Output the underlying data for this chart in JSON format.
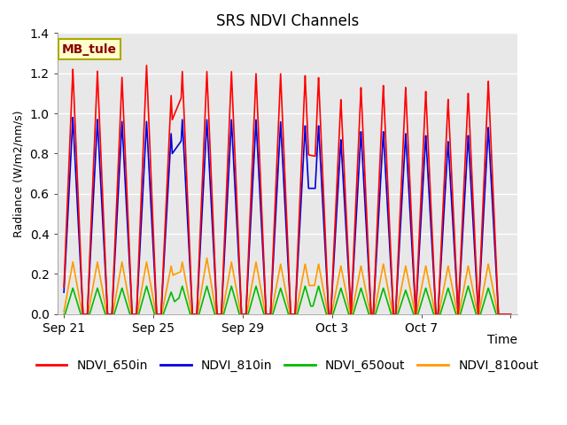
{
  "title": "SRS NDVI Channels",
  "xlabel": "Time",
  "ylabel": "Radiance (W/m2/nm/s)",
  "ylim": [
    0.0,
    1.4
  ],
  "annotation_text": "MB_tule",
  "series": {
    "NDVI_650in": {
      "color": "#ff0000",
      "label": "NDVI_650in"
    },
    "NDVI_810in": {
      "color": "#0000dd",
      "label": "NDVI_810in"
    },
    "NDVI_650out": {
      "color": "#00bb00",
      "label": "NDVI_650out"
    },
    "NDVI_810out": {
      "color": "#ff9900",
      "label": "NDVI_810out"
    }
  },
  "background_color": "#e8e8e8",
  "spike_centers": [
    0.4,
    1.5,
    2.6,
    3.7,
    4.8,
    5.3,
    6.4,
    7.5,
    8.6,
    9.7,
    10.8,
    11.4,
    12.4,
    13.3,
    14.3,
    15.3,
    16.2,
    17.2,
    18.1,
    19.0
  ],
  "peaks_650in": [
    1.22,
    1.21,
    1.18,
    1.24,
    1.09,
    1.21,
    1.21,
    1.21,
    1.2,
    1.2,
    1.19,
    1.18,
    1.07,
    1.13,
    1.14,
    1.13,
    1.11,
    1.07,
    1.1,
    1.16
  ],
  "peaks_810in": [
    0.98,
    0.97,
    0.96,
    0.96,
    0.9,
    0.97,
    0.97,
    0.97,
    0.97,
    0.96,
    0.94,
    0.94,
    0.87,
    0.91,
    0.91,
    0.9,
    0.89,
    0.86,
    0.89,
    0.93
  ],
  "peaks_650out": [
    0.13,
    0.13,
    0.13,
    0.14,
    0.11,
    0.14,
    0.14,
    0.14,
    0.14,
    0.13,
    0.14,
    0.14,
    0.13,
    0.13,
    0.13,
    0.12,
    0.13,
    0.13,
    0.14,
    0.13
  ],
  "peaks_810out": [
    0.26,
    0.26,
    0.26,
    0.26,
    0.24,
    0.26,
    0.28,
    0.26,
    0.26,
    0.25,
    0.25,
    0.25,
    0.24,
    0.24,
    0.25,
    0.24,
    0.24,
    0.24,
    0.24,
    0.25
  ],
  "xtick_positions": [
    0,
    4,
    8,
    12,
    16,
    20
  ],
  "xtick_labels": [
    "Sep 21",
    "Sep 25",
    "Sep 29",
    "Oct 3",
    "Oct 7",
    ""
  ],
  "title_fontsize": 12,
  "axis_fontsize": 10,
  "legend_fontsize": 10
}
